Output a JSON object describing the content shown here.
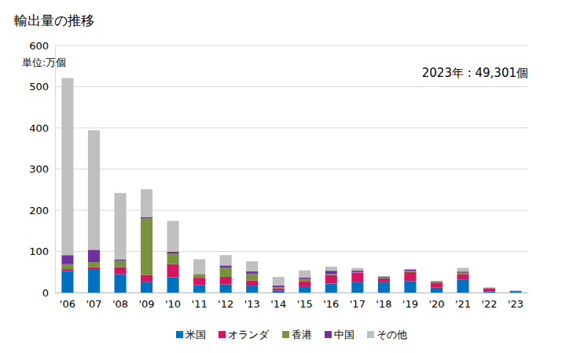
{
  "chart_data": {
    "type": "bar",
    "stacked": true,
    "grid": true,
    "legend": "bottom",
    "title": "輸出量の推移",
    "y_label": "単位:万個",
    "annotation": "2023年 : 49,301個",
    "categories": [
      "'06",
      "'07",
      "'08",
      "'09",
      "'10",
      "'11",
      "'12",
      "'13",
      "'14",
      "'15",
      "'16",
      "'17",
      "'18",
      "'19",
      "'20",
      "'21",
      "'22",
      "'23"
    ],
    "ylim": [
      0,
      600
    ],
    "yticks": [
      0,
      100,
      200,
      300,
      400,
      500,
      600
    ],
    "series": [
      {
        "name": "米国",
        "color": "#0070c0",
        "values": [
          52,
          57,
          45,
          25,
          37,
          18,
          20,
          17,
          5,
          15,
          22,
          25,
          25,
          28,
          12,
          32,
          3,
          2
        ]
      },
      {
        "name": "オランダ",
        "color": "#d6145f",
        "values": [
          5,
          5,
          17,
          18,
          32,
          18,
          18,
          12,
          5,
          13,
          20,
          23,
          10,
          22,
          12,
          12,
          7,
          1.5
        ]
      },
      {
        "name": "香港",
        "color": "#77933c",
        "values": [
          12,
          12,
          15,
          137,
          25,
          8,
          22,
          17,
          3,
          5,
          3,
          2,
          1,
          2,
          1,
          4,
          0,
          0
        ]
      },
      {
        "name": "中国",
        "color": "#7030a0",
        "values": [
          22,
          30,
          3,
          3,
          5,
          1,
          6,
          6,
          4,
          4,
          8,
          4,
          2,
          4,
          2,
          3,
          1,
          0.8
        ]
      },
      {
        "name": "その他",
        "color": "#bfbfbf",
        "values": [
          430,
          290,
          162,
          68,
          75,
          36,
          25,
          24,
          21,
          17,
          10,
          6,
          2,
          2,
          2,
          9,
          2,
          0.6
        ]
      }
    ]
  }
}
